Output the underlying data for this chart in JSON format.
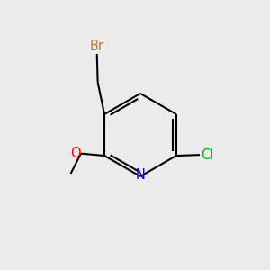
{
  "background_color": "#EBEBEB",
  "bond_color": "#000000",
  "bond_width": 1.5,
  "atom_colors": {
    "Br": "#C87820",
    "O": "#FF0000",
    "N": "#0000EE",
    "Cl": "#00BB00",
    "C": "#000000"
  },
  "font_size": 10.5,
  "rcx": 0.52,
  "rcy": 0.5,
  "rad": 0.155,
  "angles": {
    "N": 270,
    "C2": 210,
    "C3": 150,
    "C4": 90,
    "C5": 30,
    "C6": 330
  },
  "double_bonds": [
    [
      "C3",
      "C4"
    ],
    [
      "C5",
      "C6"
    ],
    [
      "N",
      "C2"
    ]
  ],
  "shrink": 0.018,
  "dbo": 0.013
}
